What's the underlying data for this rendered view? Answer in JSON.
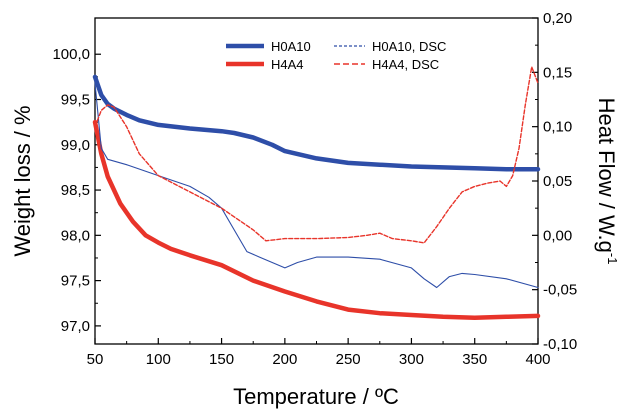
{
  "chart_data": {
    "type": "line",
    "title": "",
    "xlabel": "Temperature / ºC",
    "ylabel_left": "Weight loss / %",
    "ylabel_right_main": "Heat Flow / W.g",
    "ylabel_right_sup": "-1",
    "xlim": [
      50,
      400
    ],
    "ylim_left": [
      96.8,
      100.4
    ],
    "ylim_right": [
      -0.1,
      0.2
    ],
    "x_ticks": [
      "50",
      "100",
      "150",
      "200",
      "250",
      "300",
      "350",
      "400"
    ],
    "y_left_ticks": [
      "97,0",
      "97,5",
      "98,0",
      "98,5",
      "99,0",
      "99,5",
      "100,0"
    ],
    "y_right_ticks": [
      "-0,10",
      "-0,05",
      "0,00",
      "0,05",
      "0,10",
      "0,15",
      "0,20"
    ],
    "legend_position": "top",
    "series": [
      {
        "name": "H0A10",
        "axis": "left",
        "color": "#2e4ea8",
        "style": "thick-solid",
        "points": [
          [
            50,
            99.75
          ],
          [
            55,
            99.55
          ],
          [
            60,
            99.45
          ],
          [
            65,
            99.4
          ],
          [
            75,
            99.33
          ],
          [
            85,
            99.27
          ],
          [
            100,
            99.22
          ],
          [
            125,
            99.18
          ],
          [
            150,
            99.15
          ],
          [
            160,
            99.13
          ],
          [
            175,
            99.08
          ],
          [
            190,
            99.0
          ],
          [
            200,
            98.93
          ],
          [
            225,
            98.85
          ],
          [
            250,
            98.8
          ],
          [
            275,
            98.78
          ],
          [
            300,
            98.76
          ],
          [
            325,
            98.75
          ],
          [
            350,
            98.74
          ],
          [
            375,
            98.73
          ],
          [
            400,
            98.73
          ]
        ]
      },
      {
        "name": "H4A4",
        "axis": "left",
        "color": "#e8342a",
        "style": "thick-solid",
        "points": [
          [
            50,
            99.25
          ],
          [
            55,
            98.9
          ],
          [
            60,
            98.65
          ],
          [
            70,
            98.35
          ],
          [
            80,
            98.15
          ],
          [
            90,
            98.0
          ],
          [
            100,
            97.92
          ],
          [
            110,
            97.85
          ],
          [
            125,
            97.78
          ],
          [
            150,
            97.67
          ],
          [
            175,
            97.5
          ],
          [
            200,
            97.38
          ],
          [
            225,
            97.27
          ],
          [
            250,
            97.18
          ],
          [
            275,
            97.14
          ],
          [
            300,
            97.12
          ],
          [
            325,
            97.1
          ],
          [
            350,
            97.09
          ],
          [
            375,
            97.1
          ],
          [
            400,
            97.11
          ]
        ]
      },
      {
        "name": "H0A10, DSC",
        "axis": "right",
        "color": "#2e4ea8",
        "style": "thin-solid",
        "points": [
          [
            50,
            0.14
          ],
          [
            55,
            0.08
          ],
          [
            60,
            0.07
          ],
          [
            75,
            0.065
          ],
          [
            100,
            0.055
          ],
          [
            125,
            0.045
          ],
          [
            140,
            0.035
          ],
          [
            150,
            0.025
          ],
          [
            160,
            0.005
          ],
          [
            170,
            -0.015
          ],
          [
            180,
            -0.02
          ],
          [
            190,
            -0.025
          ],
          [
            200,
            -0.03
          ],
          [
            210,
            -0.025
          ],
          [
            225,
            -0.02
          ],
          [
            250,
            -0.02
          ],
          [
            275,
            -0.022
          ],
          [
            300,
            -0.03
          ],
          [
            310,
            -0.04
          ],
          [
            320,
            -0.048
          ],
          [
            330,
            -0.038
          ],
          [
            340,
            -0.035
          ],
          [
            350,
            -0.036
          ],
          [
            375,
            -0.04
          ],
          [
            400,
            -0.048
          ]
        ]
      },
      {
        "name": "H4A4, DSC",
        "axis": "right",
        "color": "#e8342a",
        "style": "thin-dashed",
        "points": [
          [
            50,
            0.1
          ],
          [
            55,
            0.115
          ],
          [
            60,
            0.12
          ],
          [
            65,
            0.118
          ],
          [
            75,
            0.1
          ],
          [
            85,
            0.075
          ],
          [
            100,
            0.055
          ],
          [
            125,
            0.04
          ],
          [
            150,
            0.025
          ],
          [
            175,
            0.005
          ],
          [
            185,
            -0.005
          ],
          [
            200,
            -0.003
          ],
          [
            225,
            -0.003
          ],
          [
            250,
            -0.002
          ],
          [
            265,
            0.0
          ],
          [
            275,
            0.002
          ],
          [
            285,
            -0.003
          ],
          [
            300,
            -0.005
          ],
          [
            310,
            -0.007
          ],
          [
            320,
            0.008
          ],
          [
            330,
            0.025
          ],
          [
            340,
            0.04
          ],
          [
            350,
            0.045
          ],
          [
            360,
            0.048
          ],
          [
            370,
            0.05
          ],
          [
            375,
            0.045
          ],
          [
            380,
            0.055
          ],
          [
            385,
            0.08
          ],
          [
            390,
            0.12
          ],
          [
            395,
            0.155
          ],
          [
            400,
            0.14
          ]
        ]
      }
    ]
  }
}
